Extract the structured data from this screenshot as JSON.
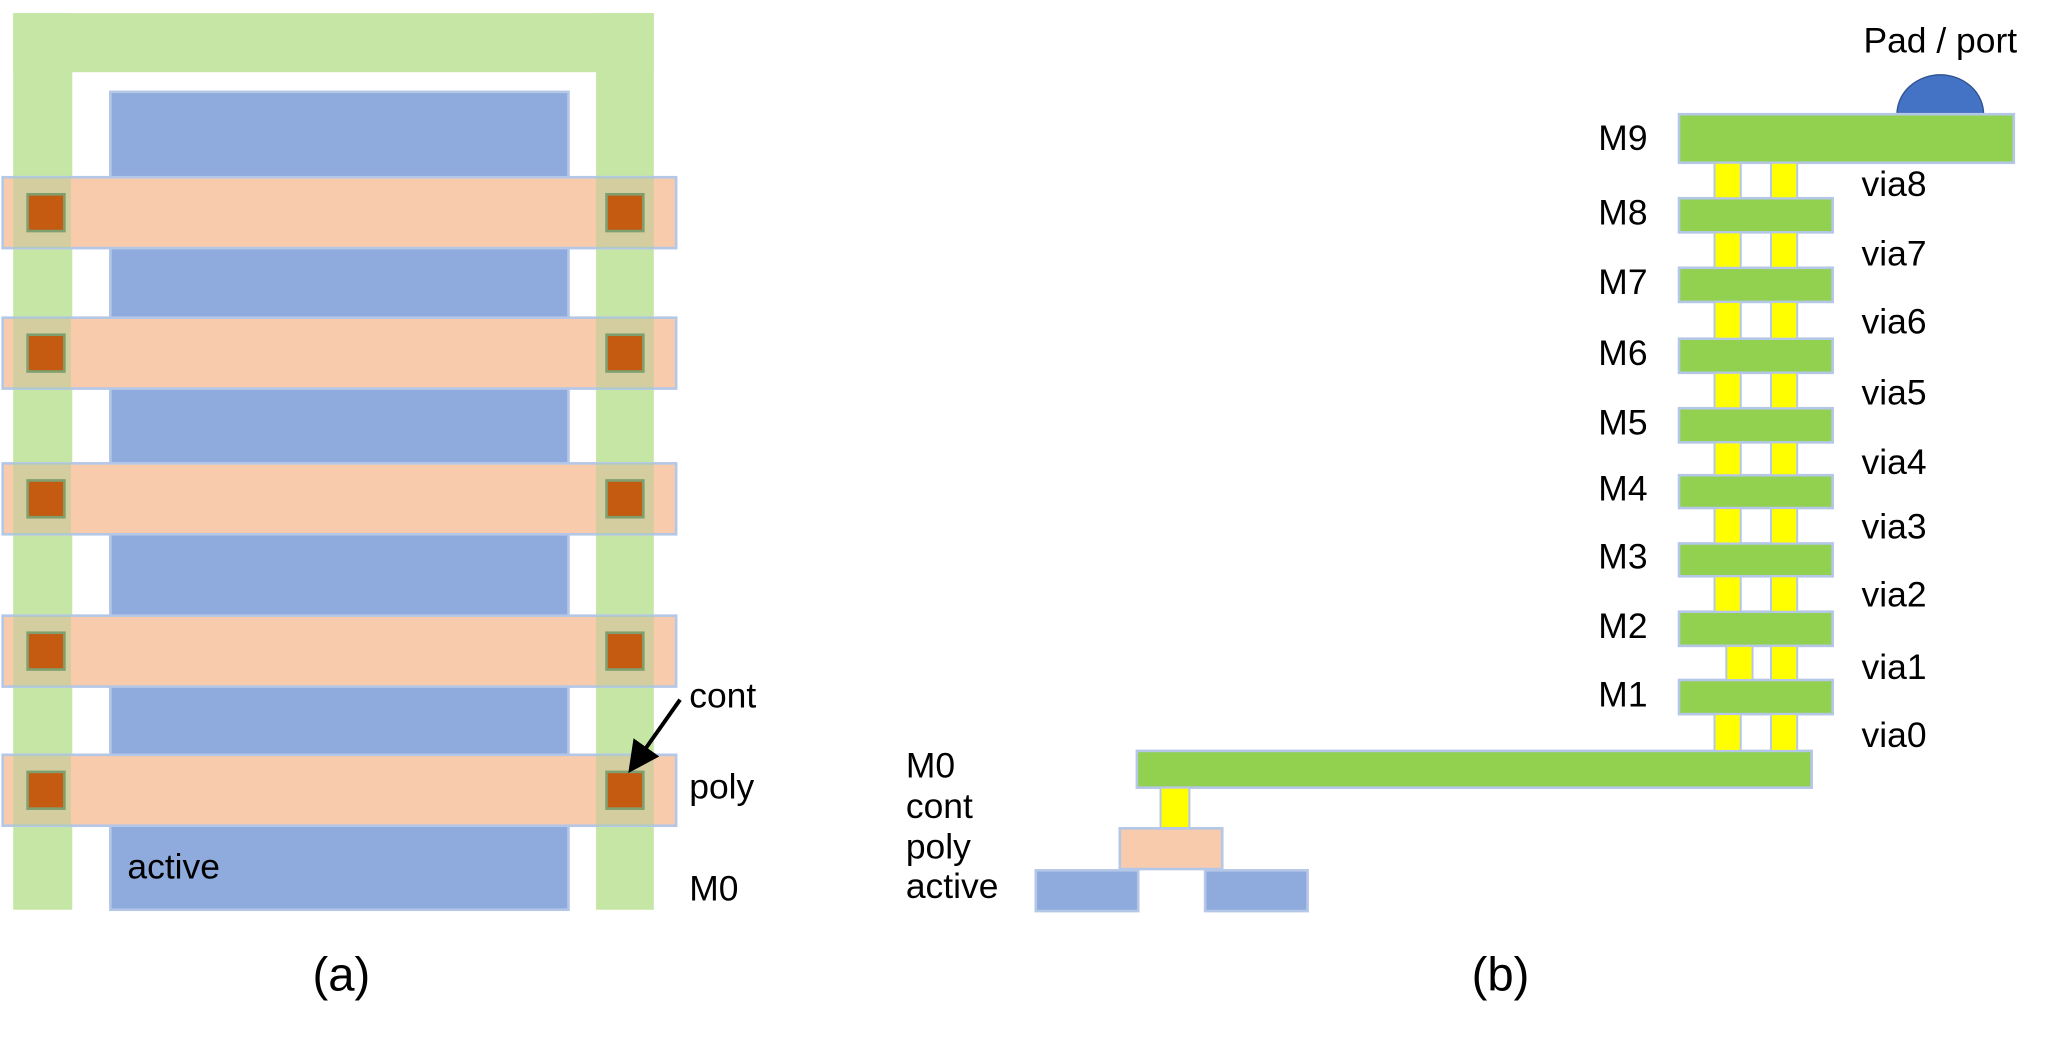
{
  "panel_a": {
    "cont": "cont",
    "poly": "poly",
    "metal": "M0",
    "active": "active",
    "caption": "(a)"
  },
  "panel_b": {
    "pad": "Pad / port",
    "metals": [
      "M9",
      "M8",
      "M7",
      "M6",
      "M5",
      "M4",
      "M3",
      "M2",
      "M1"
    ],
    "vias": [
      "via8",
      "via7",
      "via6",
      "via5",
      "via4",
      "via3",
      "via2",
      "via1",
      "via0"
    ],
    "stack": [
      "M0",
      "cont",
      "poly",
      "active"
    ],
    "caption": "(b)"
  }
}
